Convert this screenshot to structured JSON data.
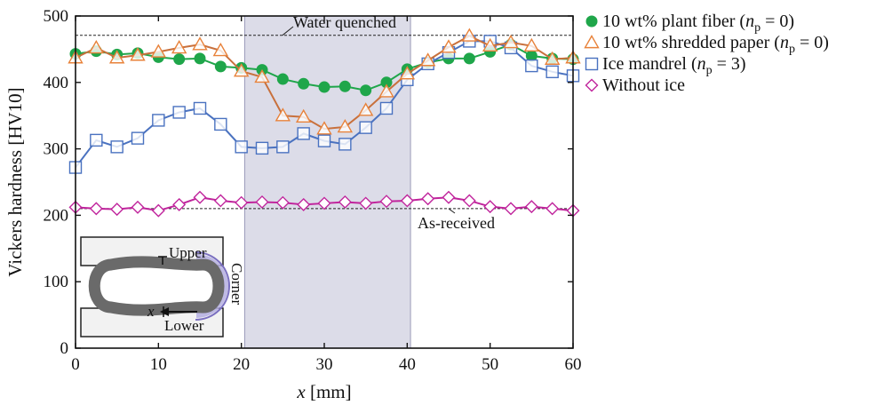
{
  "chart_data": {
    "type": "line",
    "xlabel_var": "x",
    "xlabel_unit": " [mm]",
    "ylabel": "Vickers hardness [HV10]",
    "xlim": [
      0,
      60
    ],
    "ylim": [
      0,
      500
    ],
    "xticks": [
      0,
      10,
      20,
      30,
      40,
      50,
      60
    ],
    "yticks": [
      0,
      100,
      200,
      300,
      400,
      500
    ],
    "grid": false,
    "legend_position": "right",
    "shaded_region": {
      "from": 20.4,
      "to": 40.4,
      "color": "#dcdce8"
    },
    "reference_lines": [
      {
        "label": "Water quenched",
        "y": 471
      },
      {
        "label": "As-received",
        "y": 210
      }
    ],
    "series": [
      {
        "name": "10 wt% plant fiber",
        "np_label": "n",
        "np_sub": "p",
        "np_value": " = 0)",
        "color": "#1fa64a",
        "line_color": "#1fa64a",
        "marker": "filled-circle",
        "x": [
          0,
          2.5,
          5,
          7.5,
          10,
          12.5,
          15,
          17.5,
          20,
          22.5,
          25,
          27.5,
          30,
          32.5,
          35,
          37.5,
          40,
          42.5,
          45,
          47.5,
          50,
          52.5,
          55,
          57.5,
          60
        ],
        "values": [
          443,
          447,
          442,
          444,
          438,
          435,
          436,
          424,
          422,
          419,
          405,
          398,
          393,
          394,
          388,
          400,
          420,
          430,
          436,
          436,
          446,
          457,
          440,
          436,
          435
        ]
      },
      {
        "name": "10 wt% shredded paper",
        "np_label": "n",
        "np_sub": "p",
        "np_value": " = 0)",
        "color": "#e8823a",
        "line_color": "#c8703c",
        "marker": "open-triangle",
        "x": [
          0,
          2.5,
          5,
          7.5,
          10,
          12.5,
          15,
          17.5,
          20,
          22.5,
          25,
          27.5,
          30,
          32.5,
          35,
          37.5,
          40,
          42.5,
          45,
          47.5,
          50,
          52.5,
          55,
          57.5,
          60
        ],
        "values": [
          437,
          452,
          437,
          441,
          446,
          452,
          457,
          448,
          417,
          408,
          350,
          348,
          330,
          333,
          358,
          386,
          413,
          433,
          453,
          470,
          455,
          460,
          455,
          435,
          437
        ]
      },
      {
        "name": "Ice mandrel",
        "np_label": "n",
        "np_sub": "p",
        "np_value": " = 3)",
        "color": "#4a72c0",
        "line_color": "#4a72c0",
        "marker": "open-square",
        "x": [
          0,
          2.5,
          5,
          7.5,
          10,
          12.5,
          15,
          17.5,
          20,
          22.5,
          25,
          27.5,
          30,
          32.5,
          35,
          37.5,
          40,
          42.5,
          45,
          47.5,
          50,
          52.5,
          55,
          57.5,
          60
        ],
        "values": [
          272,
          313,
          303,
          316,
          343,
          355,
          361,
          337,
          303,
          301,
          303,
          323,
          312,
          307,
          332,
          361,
          404,
          428,
          445,
          462,
          462,
          452,
          425,
          416,
          410
        ]
      },
      {
        "name": "Without ice",
        "color": "#c0249c",
        "line_color": "#c0249c",
        "marker": "open-diamond",
        "x": [
          0,
          2.5,
          5,
          7.5,
          10,
          12.5,
          15,
          17.5,
          20,
          22.5,
          25,
          27.5,
          30,
          32.5,
          35,
          37.5,
          40,
          42.5,
          45,
          47.5,
          50,
          52.5,
          55,
          57.5,
          60
        ],
        "values": [
          212,
          210,
          209,
          212,
          207,
          216,
          227,
          222,
          219,
          220,
          219,
          216,
          218,
          220,
          218,
          221,
          222,
          225,
          227,
          222,
          213,
          210,
          213,
          210,
          207
        ]
      }
    ],
    "inset_labels": {
      "upper": "Upper",
      "lower": "Lower",
      "corner": "Corner",
      "axis": "x"
    }
  }
}
